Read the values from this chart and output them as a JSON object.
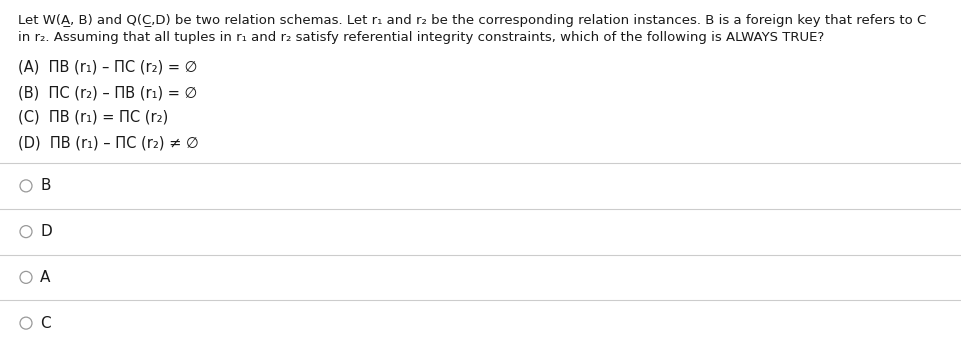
{
  "background_color": "#ffffff",
  "question_line1": "Let W(A̲, B) and Q(C̲,D) be two relation schemas. Let r₁ and r₂ be the corresponding relation instances. B is a foreign key that refers to C",
  "question_line2": "in r₂. Assuming that all tuples in r₁ and r₂ satisfy referential integrity constraints, which of the following is ALWAYS TRUE?",
  "options": [
    "(A)  ΠB (r₁) – ΠC (r₂) = ∅",
    "(B)  ΠC (r₂) – ΠB (r₁) = ∅",
    "(C)  ΠB (r₁) = ΠC (r₂)",
    "(D)  ΠB (r₁) – ΠC (r₂) ≠ ∅"
  ],
  "answers": [
    "B",
    "D",
    "A",
    "C"
  ],
  "divider_color": "#cccccc",
  "text_color": "#1a1a1a",
  "radio_color": "#999999",
  "font_size_question": 9.5,
  "font_size_options": 10.5,
  "font_size_answers": 11.0,
  "fig_width": 9.61,
  "fig_height": 3.61,
  "dpi": 100
}
